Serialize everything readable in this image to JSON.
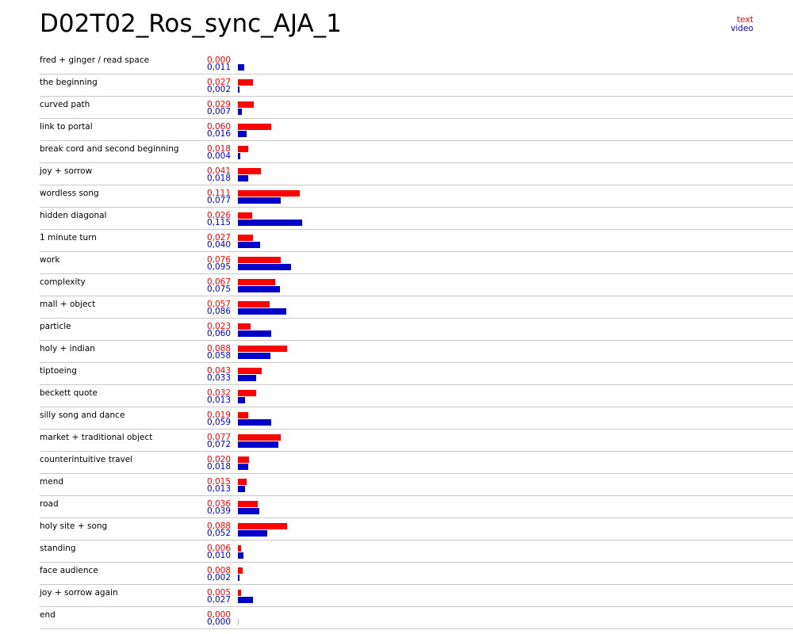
{
  "title": "D02T02_Ros_sync_AJA_1",
  "legend": {
    "series1": "text",
    "series2": "video"
  },
  "colors": {
    "text": "#ff0000",
    "video": "#0000cc"
  },
  "chart_data": {
    "type": "bar",
    "orientation": "horizontal",
    "title": "D02T02_Ros_sync_AJA_1",
    "legend_position": "top-right",
    "grid": false,
    "xlim": [
      0,
      0.15
    ],
    "categories": [
      "fred + ginger / read space",
      "the beginning",
      "curved path",
      "link to portal",
      "break cord and second beginning",
      "joy + sorrow",
      "wordless song",
      "hidden diagonal",
      "1 minute turn",
      "work",
      "complexity",
      "mall + object",
      "particle",
      "holy + indian",
      "tiptoeing",
      "beckett quote",
      "silly song and dance",
      "market + traditional object",
      "counterintuitive travel",
      "mend",
      "road",
      "holy site + song",
      "standing",
      "face audience",
      "joy + sorrow again",
      "end"
    ],
    "series": [
      {
        "name": "text",
        "color": "#ff0000",
        "values": [
          0.0,
          0.027,
          0.029,
          0.06,
          0.018,
          0.041,
          0.111,
          0.026,
          0.027,
          0.076,
          0.067,
          0.057,
          0.023,
          0.088,
          0.043,
          0.032,
          0.019,
          0.077,
          0.02,
          0.015,
          0.036,
          0.088,
          0.006,
          0.008,
          0.005,
          0.0
        ],
        "labels": [
          "0,000",
          "0,027",
          "0,029",
          "0,060",
          "0,018",
          "0,041",
          "0,111",
          "0,026",
          "0,027",
          "0,076",
          "0,067",
          "0,057",
          "0,023",
          "0,088",
          "0,043",
          "0,032",
          "0,019",
          "0,077",
          "0,020",
          "0,015",
          "0,036",
          "0,088",
          "0,006",
          "0,008",
          "0,005",
          "0,000"
        ]
      },
      {
        "name": "video",
        "color": "#0000cc",
        "values": [
          0.011,
          0.002,
          0.007,
          0.016,
          0.004,
          0.018,
          0.077,
          0.115,
          0.04,
          0.095,
          0.075,
          0.086,
          0.06,
          0.058,
          0.033,
          0.013,
          0.059,
          0.072,
          0.018,
          0.013,
          0.039,
          0.052,
          0.01,
          0.002,
          0.027,
          0.0
        ],
        "labels": [
          "0,011",
          "0,002",
          "0,007",
          "0,016",
          "0,004",
          "0,018",
          "0,077",
          "0,115",
          "0,040",
          "0,095",
          "0,075",
          "0,086",
          "0,060",
          "0,058",
          "0,033",
          "0,013",
          "0,059",
          "0,072",
          "0,018",
          "0,013",
          "0,039",
          "0,052",
          "0,010",
          "0,002",
          "0,027",
          "0,000"
        ]
      }
    ]
  }
}
